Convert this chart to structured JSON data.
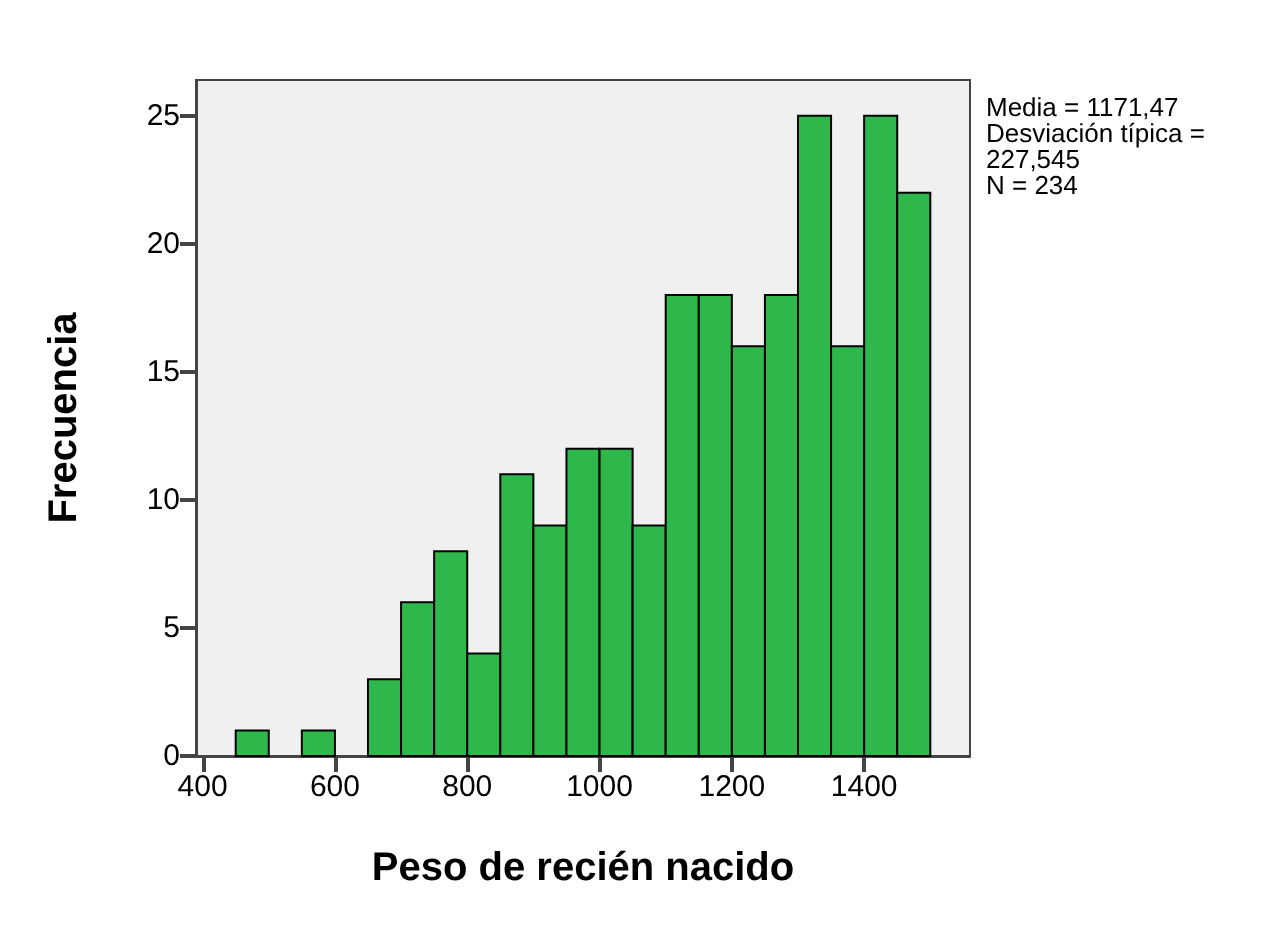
{
  "chart_data": {
    "type": "histogram",
    "xlabel": "Peso de recién nacido",
    "ylabel": "Frecuencia",
    "bins": [
      450,
      500,
      550,
      600,
      650,
      700,
      750,
      800,
      850,
      900,
      950,
      1000,
      1050,
      1100,
      1150,
      1200,
      1250,
      1300,
      1350,
      1400,
      1450,
      1500
    ],
    "values": [
      1,
      0,
      1,
      0,
      3,
      6,
      8,
      4,
      11,
      9,
      12,
      12,
      9,
      18,
      18,
      16,
      18,
      25,
      16,
      25,
      22
    ],
    "color": "#2eb84b",
    "xlim": [
      390,
      1560
    ],
    "xticks": [
      400,
      600,
      800,
      1000,
      1200,
      1400
    ],
    "ylim": [
      0,
      26.4
    ],
    "yticks": [
      0,
      5,
      10,
      15,
      20,
      25
    ],
    "grid": false,
    "annotations": [
      "Media = 1171,47",
      "Desviación típica = 227,545",
      "N = 234"
    ]
  }
}
